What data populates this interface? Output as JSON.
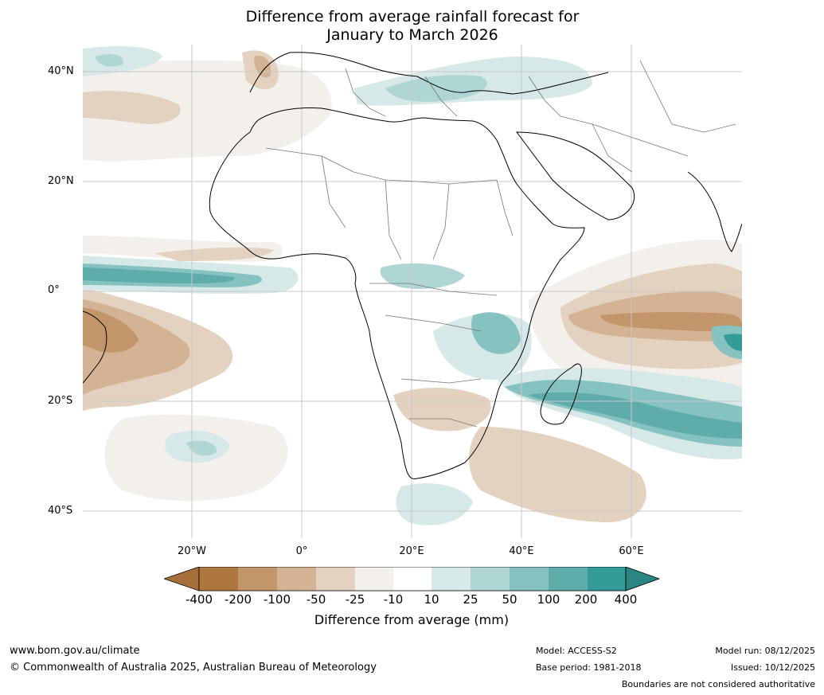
{
  "title": {
    "line1": "Difference from average rainfall forecast for",
    "line2": "January to March 2026"
  },
  "map": {
    "lat_labels": [
      "40°N",
      "20°N",
      "0°",
      "20°S",
      "40°S"
    ],
    "lon_labels": [
      "20°W",
      "0°",
      "20°E",
      "40°E",
      "60°E"
    ]
  },
  "colorbar": {
    "label": "Difference from average (mm)",
    "ticks": [
      "-400",
      "-200",
      "-100",
      "-50",
      "-25",
      "-10",
      "10",
      "25",
      "50",
      "100",
      "200",
      "400"
    ],
    "colors": {
      "lt_-400": "#a7703a",
      "-400_-200": "#ae773f",
      "-200_-100": "#c2956a",
      "-100_-50": "#d4b394",
      "-50_-25": "#e4d2c0",
      "-25_-10": "#f3efea",
      "-10_10": "#ffffff",
      "10_25": "#d6e8e7",
      "25_50": "#afd6d4",
      "50_100": "#86c2c0",
      "100_200": "#5fadab",
      "200_400": "#339b98",
      "gt_400": "#2a8683"
    }
  },
  "footer": {
    "website": "www.bom.gov.au/climate",
    "copyright": "© Commonwealth of Australia 2025, Australian Bureau of Meteorology",
    "model": "Model: ACCESS-S2",
    "base_period": "Base period: 1981-2018",
    "model_run": "Model run: 08/12/2025",
    "issued": "Issued: 10/12/2025",
    "disclaimer": "Boundaries are not considered authoritative"
  }
}
